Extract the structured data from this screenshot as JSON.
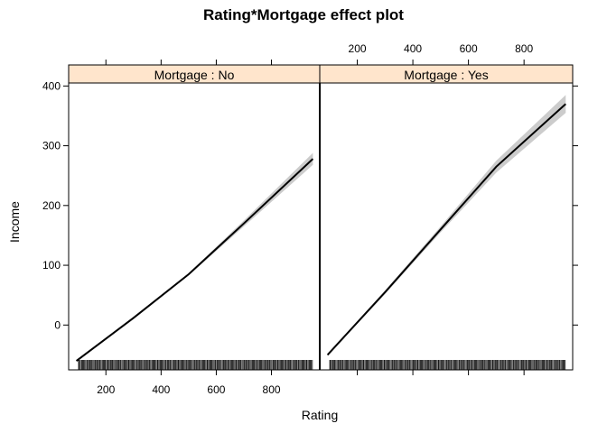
{
  "chart_data": {
    "type": "line",
    "title": "Rating*Mortgage effect plot",
    "xlabel": "Rating",
    "ylabel": "Income",
    "xlim": [
      65,
      975
    ],
    "ylim": [
      -75,
      405
    ],
    "x_ticks": [
      200,
      400,
      600,
      800
    ],
    "y_ticks": [
      0,
      100,
      200,
      300,
      400
    ],
    "grid": false,
    "legend": "none",
    "colors": {
      "strip": "#ffe5cc",
      "band": "#cccccc",
      "line": "#000000"
    },
    "panels": [
      {
        "strip_label": "Mortgage : No",
        "x": [
          93,
          300,
          500,
          700,
          950
        ],
        "y": [
          -60,
          12,
          85,
          170,
          278
        ],
        "lower": [
          -62,
          10,
          83,
          165,
          268
        ],
        "upper": [
          -58,
          14,
          87,
          175,
          288
        ],
        "rug": [
          101,
          104,
          108,
          112,
          116,
          119,
          123,
          127,
          131,
          134,
          138,
          142,
          146,
          149,
          153,
          157,
          161,
          164,
          168,
          172,
          176,
          179,
          183,
          187,
          191,
          194,
          198,
          202,
          206,
          209,
          213,
          217,
          221,
          224,
          228,
          232,
          236,
          239,
          243,
          247,
          251,
          254,
          258,
          262,
          266,
          269,
          273,
          277,
          281,
          284,
          288,
          292,
          296,
          299,
          303,
          307,
          311,
          314,
          318,
          322,
          326,
          329,
          333,
          337,
          341,
          344,
          348,
          352,
          356,
          359,
          363,
          367,
          371,
          374,
          378,
          382,
          386,
          389,
          393,
          397,
          401,
          404,
          408,
          412,
          416,
          419,
          423,
          427,
          431,
          434,
          438,
          442,
          446,
          449,
          453,
          457,
          461,
          464,
          468,
          472,
          476,
          479,
          483,
          487,
          491,
          494,
          498,
          502,
          506,
          509,
          513,
          517,
          521,
          524,
          528,
          532,
          536,
          539,
          543,
          547,
          551,
          554,
          558,
          562,
          566,
          569,
          573,
          577,
          581,
          584,
          588,
          592,
          596,
          599,
          603,
          607,
          611,
          614,
          618,
          622,
          626,
          629,
          633,
          637,
          641,
          644,
          648,
          652,
          656,
          659,
          663,
          667,
          671,
          674,
          678,
          682,
          686,
          689,
          693,
          697,
          701,
          704,
          708,
          712,
          716,
          719,
          723,
          727,
          731,
          734,
          738,
          742,
          746,
          749,
          753,
          757,
          761,
          764,
          768,
          772,
          776,
          779,
          783,
          787,
          791,
          794,
          798,
          802,
          806,
          809,
          813,
          817,
          821,
          824,
          828,
          832,
          836,
          839,
          843,
          847,
          851,
          854,
          858,
          862,
          866,
          869,
          873,
          877,
          881,
          884,
          888,
          892,
          896,
          899,
          903,
          907,
          911,
          914,
          918,
          922,
          926,
          929,
          933,
          937,
          941,
          944,
          948
        ]
      },
      {
        "strip_label": "Mortgage : Yes",
        "x": [
          93,
          300,
          500,
          700,
          950
        ],
        "y": [
          -50,
          55,
          160,
          265,
          370
        ],
        "lower": [
          -52,
          52,
          155,
          255,
          355
        ],
        "upper": [
          -48,
          58,
          165,
          275,
          385
        ],
        "rug": [
          101,
          104,
          108,
          112,
          116,
          119,
          123,
          127,
          131,
          134,
          138,
          142,
          146,
          149,
          153,
          157,
          161,
          164,
          168,
          172,
          176,
          179,
          183,
          187,
          191,
          194,
          198,
          202,
          206,
          209,
          213,
          217,
          221,
          224,
          228,
          232,
          236,
          239,
          243,
          247,
          251,
          254,
          258,
          262,
          266,
          269,
          273,
          277,
          281,
          284,
          288,
          292,
          296,
          299,
          303,
          307,
          311,
          314,
          318,
          322,
          326,
          329,
          333,
          337,
          341,
          344,
          348,
          352,
          356,
          359,
          363,
          367,
          371,
          374,
          378,
          382,
          386,
          389,
          393,
          397,
          401,
          404,
          408,
          412,
          416,
          419,
          423,
          427,
          431,
          434,
          438,
          442,
          446,
          449,
          453,
          457,
          461,
          464,
          468,
          472,
          476,
          479,
          483,
          487,
          491,
          494,
          498,
          502,
          506,
          509,
          513,
          517,
          521,
          524,
          528,
          532,
          536,
          539,
          543,
          547,
          551,
          554,
          558,
          562,
          566,
          569,
          573,
          577,
          581,
          584,
          588,
          592,
          596,
          599,
          603,
          607,
          611,
          614,
          618,
          622,
          626,
          629,
          633,
          637,
          641,
          644,
          648,
          652,
          656,
          659,
          663,
          667,
          671,
          674,
          678,
          682,
          686,
          689,
          693,
          697,
          701,
          704,
          708,
          712,
          716,
          719,
          723,
          727,
          731,
          734,
          738,
          742,
          746,
          749,
          753,
          757,
          761,
          764,
          768,
          772,
          776,
          779,
          783,
          787,
          791,
          794,
          798,
          802,
          806,
          809,
          813,
          817,
          821,
          824,
          828,
          832,
          836,
          839,
          843,
          847,
          851,
          854,
          858,
          862,
          866,
          869,
          873,
          877,
          881,
          884,
          888,
          892,
          896,
          899,
          903,
          907,
          911,
          914,
          918,
          922,
          926,
          929,
          933,
          937,
          941,
          944,
          948
        ]
      }
    ]
  }
}
